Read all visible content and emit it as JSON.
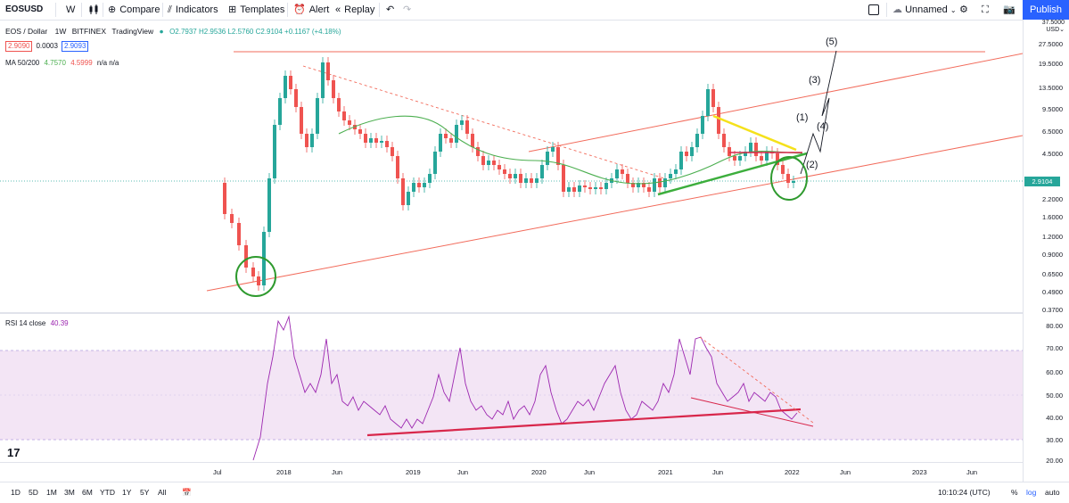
{
  "toolbar": {
    "symbol": "EOSUSD",
    "interval": "W",
    "compare": "Compare",
    "indicators": "Indicators",
    "templates": "Templates",
    "alert": "Alert",
    "replay": "Replay",
    "layout_name": "Unnamed",
    "publish": "Publish"
  },
  "legend": {
    "title": "EOS / Dollar",
    "interval": "1W",
    "exchange": "BITFINEX",
    "platform": "TradingView",
    "ohlc": "O2.7937  H2.9536  L2.5760  C2.9104  +0.1167 (+4.18%)",
    "bid": "2.9090",
    "spread": "0.0003",
    "ask": "2.9093",
    "ma_label": "MA 50/200",
    "ma_fast": "4.7570",
    "ma_slow": "4.5999",
    "ma_na": "n/a  n/a",
    "rsi_label": "RSI 14 close",
    "rsi_value": "40.39"
  },
  "price_axis": {
    "corner_top": "37.5000",
    "currency": "USD",
    "labels": [
      "27.5000",
      "19.5000",
      "13.5000",
      "9.5000",
      "6.5000",
      "4.5000",
      "2.2000",
      "1.6000",
      "1.2000",
      "0.9000",
      "0.6500",
      "0.4900",
      "0.3700"
    ],
    "current_price": "2.9104",
    "rsi_labels": [
      "80.00",
      "70.00",
      "60.00",
      "50.00",
      "40.00",
      "30.00",
      "20.00"
    ]
  },
  "time_axis": [
    "Jul",
    "2018",
    "Jun",
    "2019",
    "Jun",
    "2020",
    "Jun",
    "2021",
    "Jun",
    "2022",
    "Jun",
    "2023",
    "Jun"
  ],
  "annotations": {
    "wave_5": "(5)",
    "wave_3": "(3)",
    "wave_1": "(1)",
    "wave_4": "(4)",
    "wave_2": "(2)"
  },
  "bottombar": {
    "ranges": [
      "1D",
      "5D",
      "1M",
      "3M",
      "6M",
      "YTD",
      "1Y",
      "5Y",
      "All"
    ],
    "clock": "10:10:24 (UTC)",
    "percent": "%",
    "log": "log",
    "auto": "auto"
  },
  "colors": {
    "accent": "#2962ff",
    "up": "#26a69a",
    "down": "#ef5350",
    "ma": "#4caf50",
    "rsi": "#9c27b0",
    "rsi_band": "#f3e5f5",
    "trend_red": "#f26b5b",
    "annotation_green": "#2e9a2e",
    "triangle_yellow": "#f5e11b",
    "rsi_trend": "#d8274b"
  }
}
